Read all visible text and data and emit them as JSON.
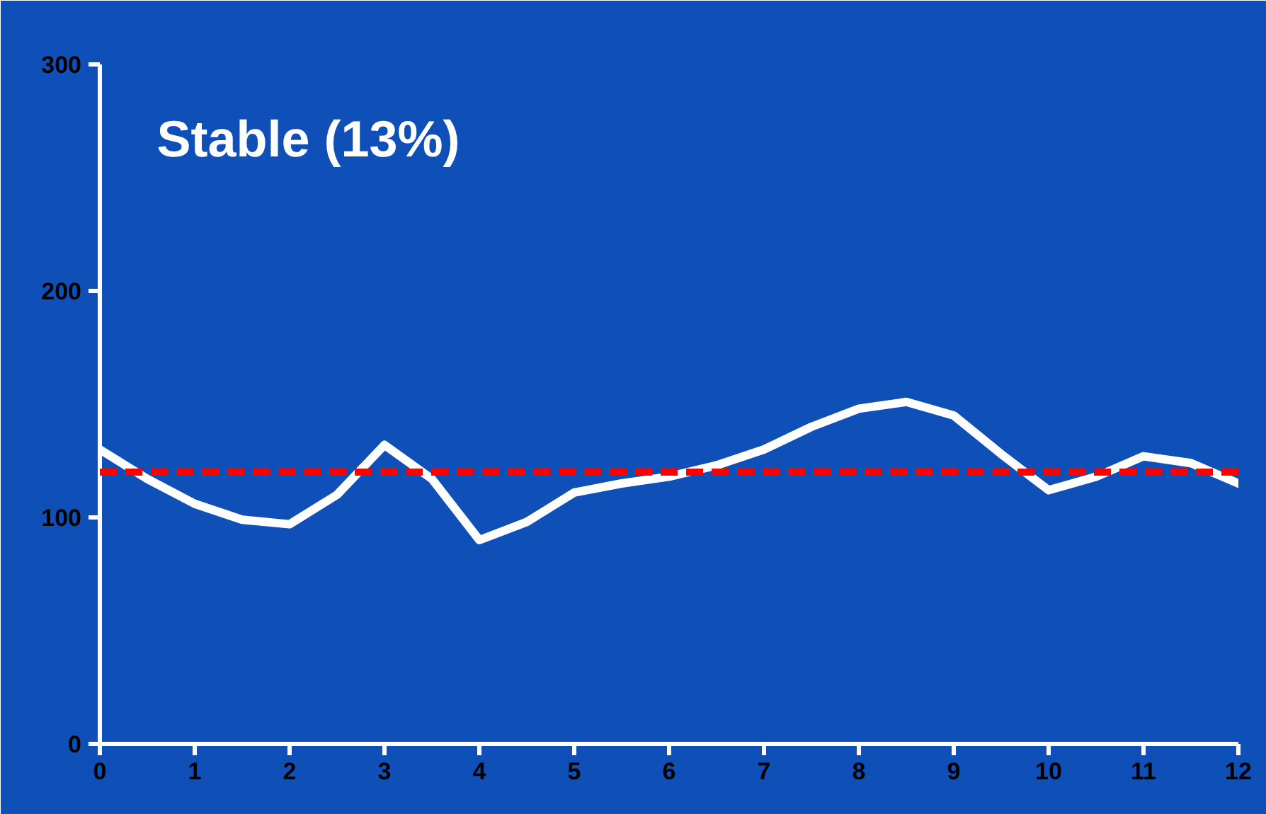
{
  "chart_data": {
    "type": "line",
    "title": "Stable (13%)",
    "x": [
      0,
      0.5,
      1,
      1.5,
      2,
      2.5,
      3,
      3.5,
      4,
      4.5,
      5,
      5.5,
      6,
      6.5,
      7,
      7.5,
      8,
      8.5,
      9,
      9.5,
      10,
      10.5,
      11,
      11.5,
      12
    ],
    "series": [
      {
        "color": "#ffffff",
        "values": [
          130,
          117,
          106,
          99,
          97,
          110,
          132,
          117,
          90,
          98,
          111,
          115,
          118,
          123,
          130,
          140,
          148,
          151,
          145,
          128,
          112,
          118,
          127,
          124,
          115
        ]
      }
    ],
    "ref_lines": [
      {
        "axis": "y",
        "value": 120,
        "color": "#ff0000",
        "line_style": "dashed"
      }
    ],
    "xlim": [
      0,
      12
    ],
    "ylim": [
      0,
      300
    ],
    "xticks": [
      0,
      1,
      2,
      3,
      4,
      5,
      6,
      7,
      8,
      9,
      10,
      11,
      12
    ],
    "yticks": [
      0,
      100,
      200,
      300
    ],
    "grid": false,
    "marker": "none",
    "line_style": "solid"
  }
}
